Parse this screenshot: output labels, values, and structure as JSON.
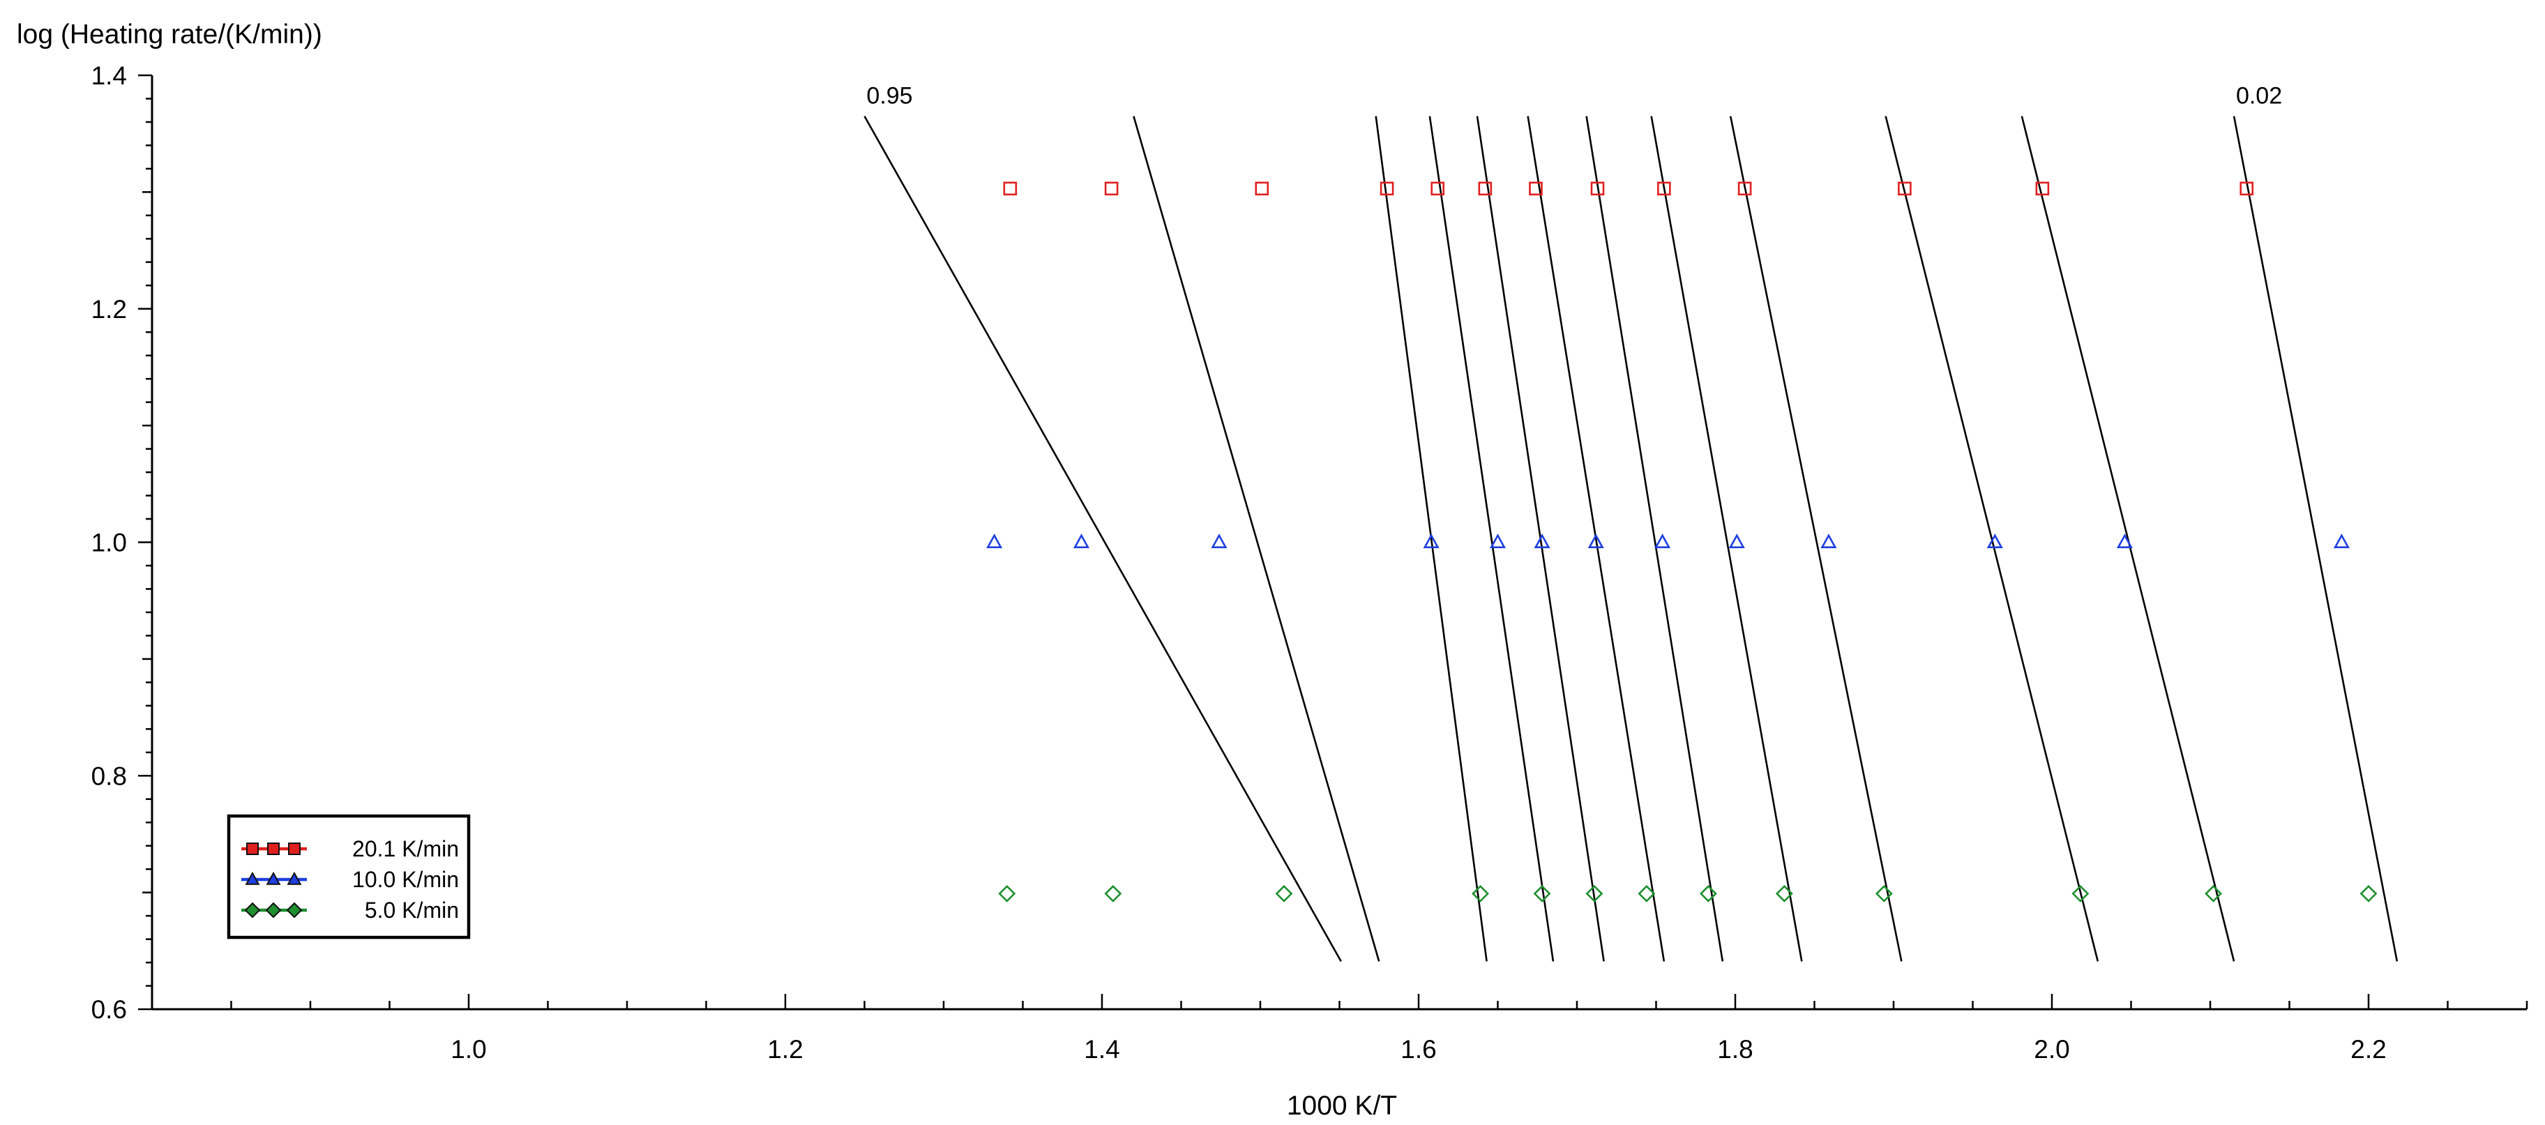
{
  "chart_data": {
    "type": "scatter",
    "title": "",
    "ylabel": "log (Heating rate/(K/min))",
    "xlabel": "1000 K/T",
    "xlim": [
      0.8,
      2.3
    ],
    "ylim": [
      0.6,
      1.4
    ],
    "x_ticks": [
      {
        "value": 1.0,
        "label": "1.0"
      },
      {
        "value": 1.2,
        "label": "1.2"
      },
      {
        "value": 1.4,
        "label": "1.4"
      },
      {
        "value": 1.6,
        "label": "1.6"
      },
      {
        "value": 1.8,
        "label": "1.8"
      },
      {
        "value": 2.0,
        "label": "2.0"
      },
      {
        "value": 2.2,
        "label": "2.2"
      }
    ],
    "y_ticks": [
      {
        "value": 0.6,
        "label": "0.6"
      },
      {
        "value": 0.8,
        "label": "0.8"
      },
      {
        "value": 1.0,
        "label": "1.0"
      },
      {
        "value": 1.2,
        "label": "1.2"
      },
      {
        "value": 1.4,
        "label": "1.4"
      }
    ],
    "grid": false,
    "legend_position": "bottom-left",
    "series": [
      {
        "name": "20.1 K/min",
        "marker": "square",
        "color": "#e01f1f",
        "y": 1.303,
        "x": [
          1.342,
          1.406,
          1.501,
          1.58,
          1.612,
          1.642,
          1.674,
          1.713,
          1.755,
          1.806,
          1.907,
          1.994,
          2.123
        ]
      },
      {
        "name": "10.0 K/min",
        "marker": "triangle",
        "color": "#1f3fe0",
        "y": 1.0,
        "x": [
          1.332,
          1.387,
          1.474,
          1.608,
          1.65,
          1.678,
          1.712,
          1.754,
          1.801,
          1.859,
          1.964,
          2.046,
          2.183
        ]
      },
      {
        "name": "5.0 K/min",
        "marker": "diamond",
        "color": "#1f8f2f",
        "y": 0.699,
        "x": [
          1.34,
          1.407,
          1.515,
          1.639,
          1.678,
          1.711,
          1.744,
          1.783,
          1.831,
          1.894,
          2.018,
          2.102,
          2.2
        ]
      }
    ],
    "isoconversional_lines": [
      {
        "label": "0.95",
        "top": [
          1.25,
          1.365
        ],
        "bottom": [
          1.551,
          0.641
        ]
      },
      {
        "label": "",
        "top": [
          1.42,
          1.365
        ],
        "bottom": [
          1.575,
          0.641
        ]
      },
      {
        "label": "",
        "top": [
          1.573,
          1.365
        ],
        "bottom": [
          1.643,
          0.641
        ]
      },
      {
        "label": "",
        "top": [
          1.607,
          1.365
        ],
        "bottom": [
          1.685,
          0.641
        ]
      },
      {
        "label": "",
        "top": [
          1.637,
          1.365
        ],
        "bottom": [
          1.717,
          0.641
        ]
      },
      {
        "label": "",
        "top": [
          1.669,
          1.365
        ],
        "bottom": [
          1.755,
          0.641
        ]
      },
      {
        "label": "",
        "top": [
          1.706,
          1.365
        ],
        "bottom": [
          1.792,
          0.641
        ]
      },
      {
        "label": "",
        "top": [
          1.747,
          1.365
        ],
        "bottom": [
          1.842,
          0.641
        ]
      },
      {
        "label": "",
        "top": [
          1.797,
          1.365
        ],
        "bottom": [
          1.905,
          0.641
        ]
      },
      {
        "label": "",
        "top": [
          1.895,
          1.365
        ],
        "bottom": [
          2.029,
          0.641
        ]
      },
      {
        "label": "",
        "top": [
          1.981,
          1.365
        ],
        "bottom": [
          2.115,
          0.641
        ]
      },
      {
        "label": "0.02",
        "top": [
          2.115,
          1.365
        ],
        "bottom": [
          2.218,
          0.641
        ]
      }
    ]
  }
}
